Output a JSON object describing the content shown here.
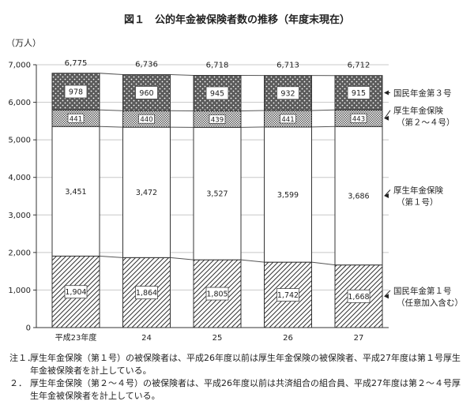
{
  "title": "図１　公的年金被保険者数の推移（年度末現在）",
  "chart_data": {
    "type": "bar",
    "stacked": true,
    "ylabel": "（万人）",
    "ylim": [
      0,
      7000
    ],
    "yticks": [
      "0",
      "1,000",
      "2,000",
      "3,000",
      "4,000",
      "5,000",
      "6,000",
      "7,000"
    ],
    "categories": [
      "平成23年度",
      "24",
      "25",
      "26",
      "27"
    ],
    "totals": [
      "6,775",
      "6,736",
      "6,718",
      "6,713",
      "6,712"
    ],
    "series": [
      {
        "name": "国民年金第１号（任意加入含む）",
        "label_lines": [
          "国民年金第１号",
          "（任意加入含む）"
        ],
        "values": [
          1904,
          1864,
          1805,
          1742,
          1668
        ],
        "labels": [
          "1,904",
          "1,864",
          "1,805",
          "1,742",
          "1,668"
        ],
        "pattern": "diagonal"
      },
      {
        "name": "厚生年金保険（第１号）",
        "label_lines": [
          "厚生年金保険",
          "（第１号）"
        ],
        "values": [
          3451,
          3472,
          3527,
          3599,
          3686
        ],
        "labels": [
          "3,451",
          "3,472",
          "3,527",
          "3,599",
          "3,686"
        ],
        "pattern": "white"
      },
      {
        "name": "厚生年金保険（第２～４号）",
        "label_lines": [
          "厚生年金保険",
          "（第２～４号）"
        ],
        "values": [
          441,
          440,
          439,
          441,
          443
        ],
        "labels": [
          "441",
          "440",
          "439",
          "441",
          "443"
        ],
        "pattern": "crosshatch"
      },
      {
        "name": "国民年金第３号",
        "label_lines": [
          "国民年金第３号"
        ],
        "values": [
          978,
          960,
          945,
          932,
          915
        ],
        "labels": [
          "978",
          "960",
          "945",
          "932",
          "915"
        ],
        "pattern": "dotted"
      }
    ]
  },
  "notes": [
    {
      "num": "注１．",
      "text": "厚生年金保険（第１号）の被保険者は、平成26年度以前は厚生年金保険の被保険者、平成27年度は第１号厚生年金被保険者を計上している。"
    },
    {
      "num": "２．",
      "text": "厚生年金保険（第２～４号）の被保険者は、平成26年度以前は共済組合の組合員、平成27年度は第２～４号厚生年金被保険者を計上している。"
    }
  ]
}
